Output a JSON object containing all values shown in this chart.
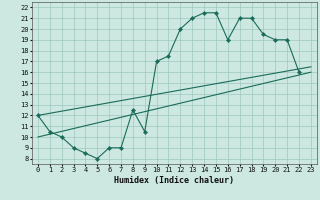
{
  "xlabel": "Humidex (Indice chaleur)",
  "bg_color": "#cce8e0",
  "grid_color": "#9fc8be",
  "line_color": "#1a6b5a",
  "xlim": [
    -0.5,
    23.5
  ],
  "ylim": [
    7.5,
    22.5
  ],
  "xticks": [
    0,
    1,
    2,
    3,
    4,
    5,
    6,
    7,
    8,
    9,
    10,
    11,
    12,
    13,
    14,
    15,
    16,
    17,
    18,
    19,
    20,
    21,
    22,
    23
  ],
  "yticks": [
    8,
    9,
    10,
    11,
    12,
    13,
    14,
    15,
    16,
    17,
    18,
    19,
    20,
    21,
    22
  ],
  "line1_x": [
    0,
    1,
    2,
    3,
    4,
    5,
    6,
    7,
    8,
    9,
    10,
    11,
    12,
    13,
    14,
    15,
    16,
    17,
    18,
    19,
    20,
    21,
    22
  ],
  "line1_y": [
    12.0,
    10.5,
    10.0,
    9.0,
    8.5,
    8.0,
    9.0,
    9.0,
    12.5,
    10.5,
    17.0,
    17.5,
    20.0,
    21.0,
    21.5,
    21.5,
    19.0,
    21.0,
    21.0,
    19.5,
    19.0,
    19.0,
    16.0
  ],
  "line2_x": [
    0,
    23
  ],
  "line2_y": [
    10.0,
    16.0
  ],
  "line3_x": [
    0,
    23
  ],
  "line3_y": [
    12.0,
    16.5
  ]
}
